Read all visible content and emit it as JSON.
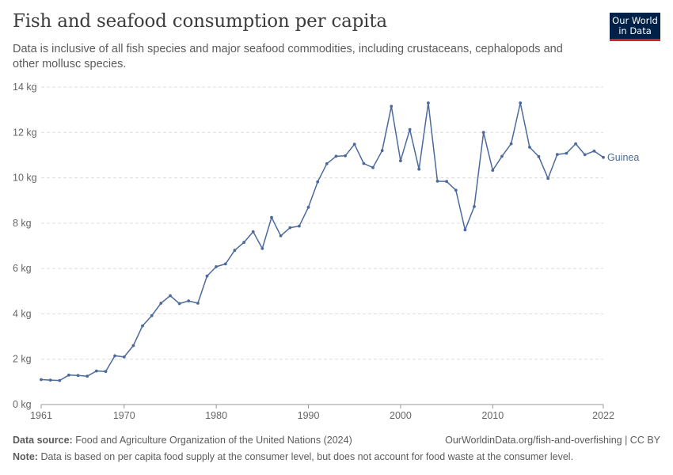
{
  "header": {
    "title": "Fish and seafood consumption per capita",
    "subtitle": "Data is inclusive of all fish species and major seafood commodities, including crustaceans, cephalopods and other mollusc species."
  },
  "logo": {
    "line1": "Our World",
    "line2": "in Data"
  },
  "footer": {
    "source_label": "Data source:",
    "source_text": "Food and Agriculture Organization of the United Nations (2024)",
    "url_text": "OurWorldinData.org/fish-and-overfishing | CC BY",
    "note_label": "Note:",
    "note_text": "Data is based on per capita food supply at the consumer level, but does not account for food waste at the consumer level."
  },
  "colors": {
    "series": "#4c6a9c",
    "grid": "#dddddd",
    "axis": "#999999",
    "logo_bg": "#002147",
    "logo_accent": "#ce261e"
  },
  "chart_data": {
    "type": "line",
    "title": "Fish and seafood consumption per capita",
    "xlabel": "",
    "ylabel": "",
    "xlim": [
      1961,
      2022
    ],
    "ylim": [
      0,
      14
    ],
    "x_ticks": [
      1961,
      1970,
      1980,
      1990,
      2000,
      2010,
      2022
    ],
    "y_ticks": [
      0,
      2,
      4,
      6,
      8,
      10,
      12,
      14
    ],
    "y_tick_labels": [
      "0 kg",
      "2 kg",
      "4 kg",
      "6 kg",
      "8 kg",
      "10 kg",
      "12 kg",
      "14 kg"
    ],
    "grid": "horizontal dashed",
    "legend": "inline label at line end",
    "series": [
      {
        "name": "Guinea",
        "x": [
          1961,
          1962,
          1963,
          1964,
          1965,
          1966,
          1967,
          1968,
          1969,
          1970,
          1971,
          1972,
          1973,
          1974,
          1975,
          1976,
          1977,
          1978,
          1979,
          1980,
          1981,
          1982,
          1983,
          1984,
          1985,
          1986,
          1987,
          1988,
          1989,
          1990,
          1991,
          1992,
          1993,
          1994,
          1995,
          1996,
          1997,
          1998,
          1999,
          2000,
          2001,
          2002,
          2003,
          2004,
          2005,
          2006,
          2007,
          2008,
          2009,
          2010,
          2011,
          2012,
          2013,
          2014,
          2015,
          2016,
          2017,
          2018,
          2019,
          2020,
          2021,
          2022
        ],
        "values": [
          1.1,
          1.08,
          1.06,
          1.3,
          1.28,
          1.25,
          1.48,
          1.46,
          2.15,
          2.1,
          2.6,
          3.47,
          3.92,
          4.47,
          4.8,
          4.45,
          4.57,
          4.47,
          5.67,
          6.08,
          6.2,
          6.8,
          7.15,
          7.62,
          6.88,
          8.25,
          7.44,
          7.8,
          7.87,
          8.7,
          9.82,
          10.62,
          10.95,
          10.97,
          11.48,
          10.63,
          10.45,
          11.2,
          13.15,
          10.75,
          12.13,
          10.38,
          13.3,
          9.85,
          9.84,
          9.45,
          7.7,
          8.73,
          12.0,
          10.33,
          10.95,
          11.5,
          13.3,
          11.35,
          10.93,
          9.97,
          11.03,
          11.08,
          11.5,
          11.02,
          11.18,
          10.9
        ]
      }
    ]
  }
}
